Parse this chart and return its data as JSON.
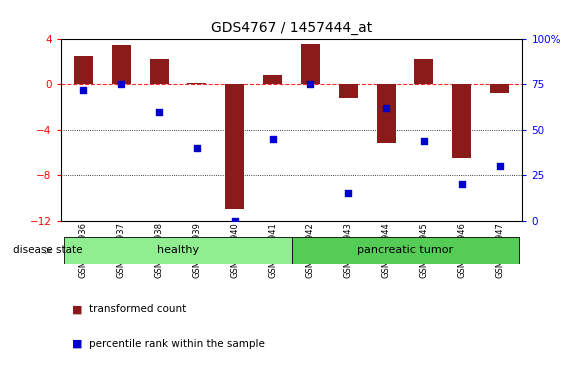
{
  "title": "GDS4767 / 1457444_at",
  "samples": [
    "GSM1159936",
    "GSM1159937",
    "GSM1159938",
    "GSM1159939",
    "GSM1159940",
    "GSM1159941",
    "GSM1159942",
    "GSM1159943",
    "GSM1159944",
    "GSM1159945",
    "GSM1159946",
    "GSM1159947"
  ],
  "bar_values": [
    2.5,
    3.5,
    2.2,
    0.15,
    -11.0,
    0.8,
    3.6,
    -1.2,
    -5.2,
    2.2,
    -6.5,
    -0.8
  ],
  "percentile_values": [
    72,
    75,
    60,
    40,
    0,
    45,
    75,
    15,
    62,
    44,
    20,
    30
  ],
  "ylim_left": [
    -12,
    4
  ],
  "ylim_right": [
    0,
    100
  ],
  "yticks_left": [
    4,
    0,
    -4,
    -8,
    -12
  ],
  "yticks_right": [
    100,
    75,
    50,
    25,
    0
  ],
  "bar_color": "#8B1A1A",
  "dot_color": "#0000CC",
  "healthy_color": "#90EE90",
  "tumor_color": "#55CC55",
  "sample_box_color": "#CCCCCC",
  "healthy_samples_count": 6,
  "tumor_samples_count": 6,
  "disease_state_label": "disease state",
  "healthy_label": "healthy",
  "tumor_label": "pancreatic tumor",
  "legend_bar_label": "transformed count",
  "legend_dot_label": "percentile rank within the sample",
  "bar_width": 0.5
}
